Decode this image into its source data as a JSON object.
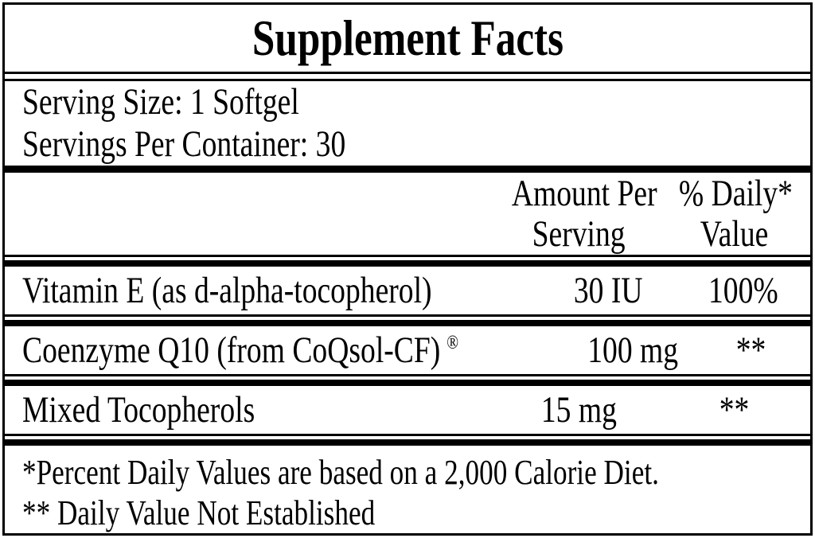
{
  "label": {
    "title": "Supplement Facts",
    "serving": {
      "serving_size": "Serving Size: 1 Softgel",
      "servings_per_container": "Servings Per Container: 30"
    },
    "header": {
      "amount_line1": "Amount Per",
      "amount_line2": "Serving",
      "dv_line1": "% Daily*",
      "dv_line2": "Value"
    },
    "rows": [
      {
        "name": "Vitamin E (as d-alpha-tocopherol)",
        "amount": "30 IU",
        "dv": "100%"
      },
      {
        "name": "Coenzyme Q10 (from CoQsol-CF)",
        "name_suffix": "®",
        "amount": "100 mg",
        "dv": "**"
      },
      {
        "name": "Mixed Tocopherols",
        "amount": "15 mg",
        "dv": "**"
      }
    ],
    "footnotes": {
      "daily_value_basis": "*Percent Daily Values are based on a 2,000 Calorie Diet.",
      "not_established": "** Daily Value Not Established"
    },
    "colors": {
      "text": "#000000",
      "background": "#ffffff",
      "border": "#000000"
    }
  }
}
